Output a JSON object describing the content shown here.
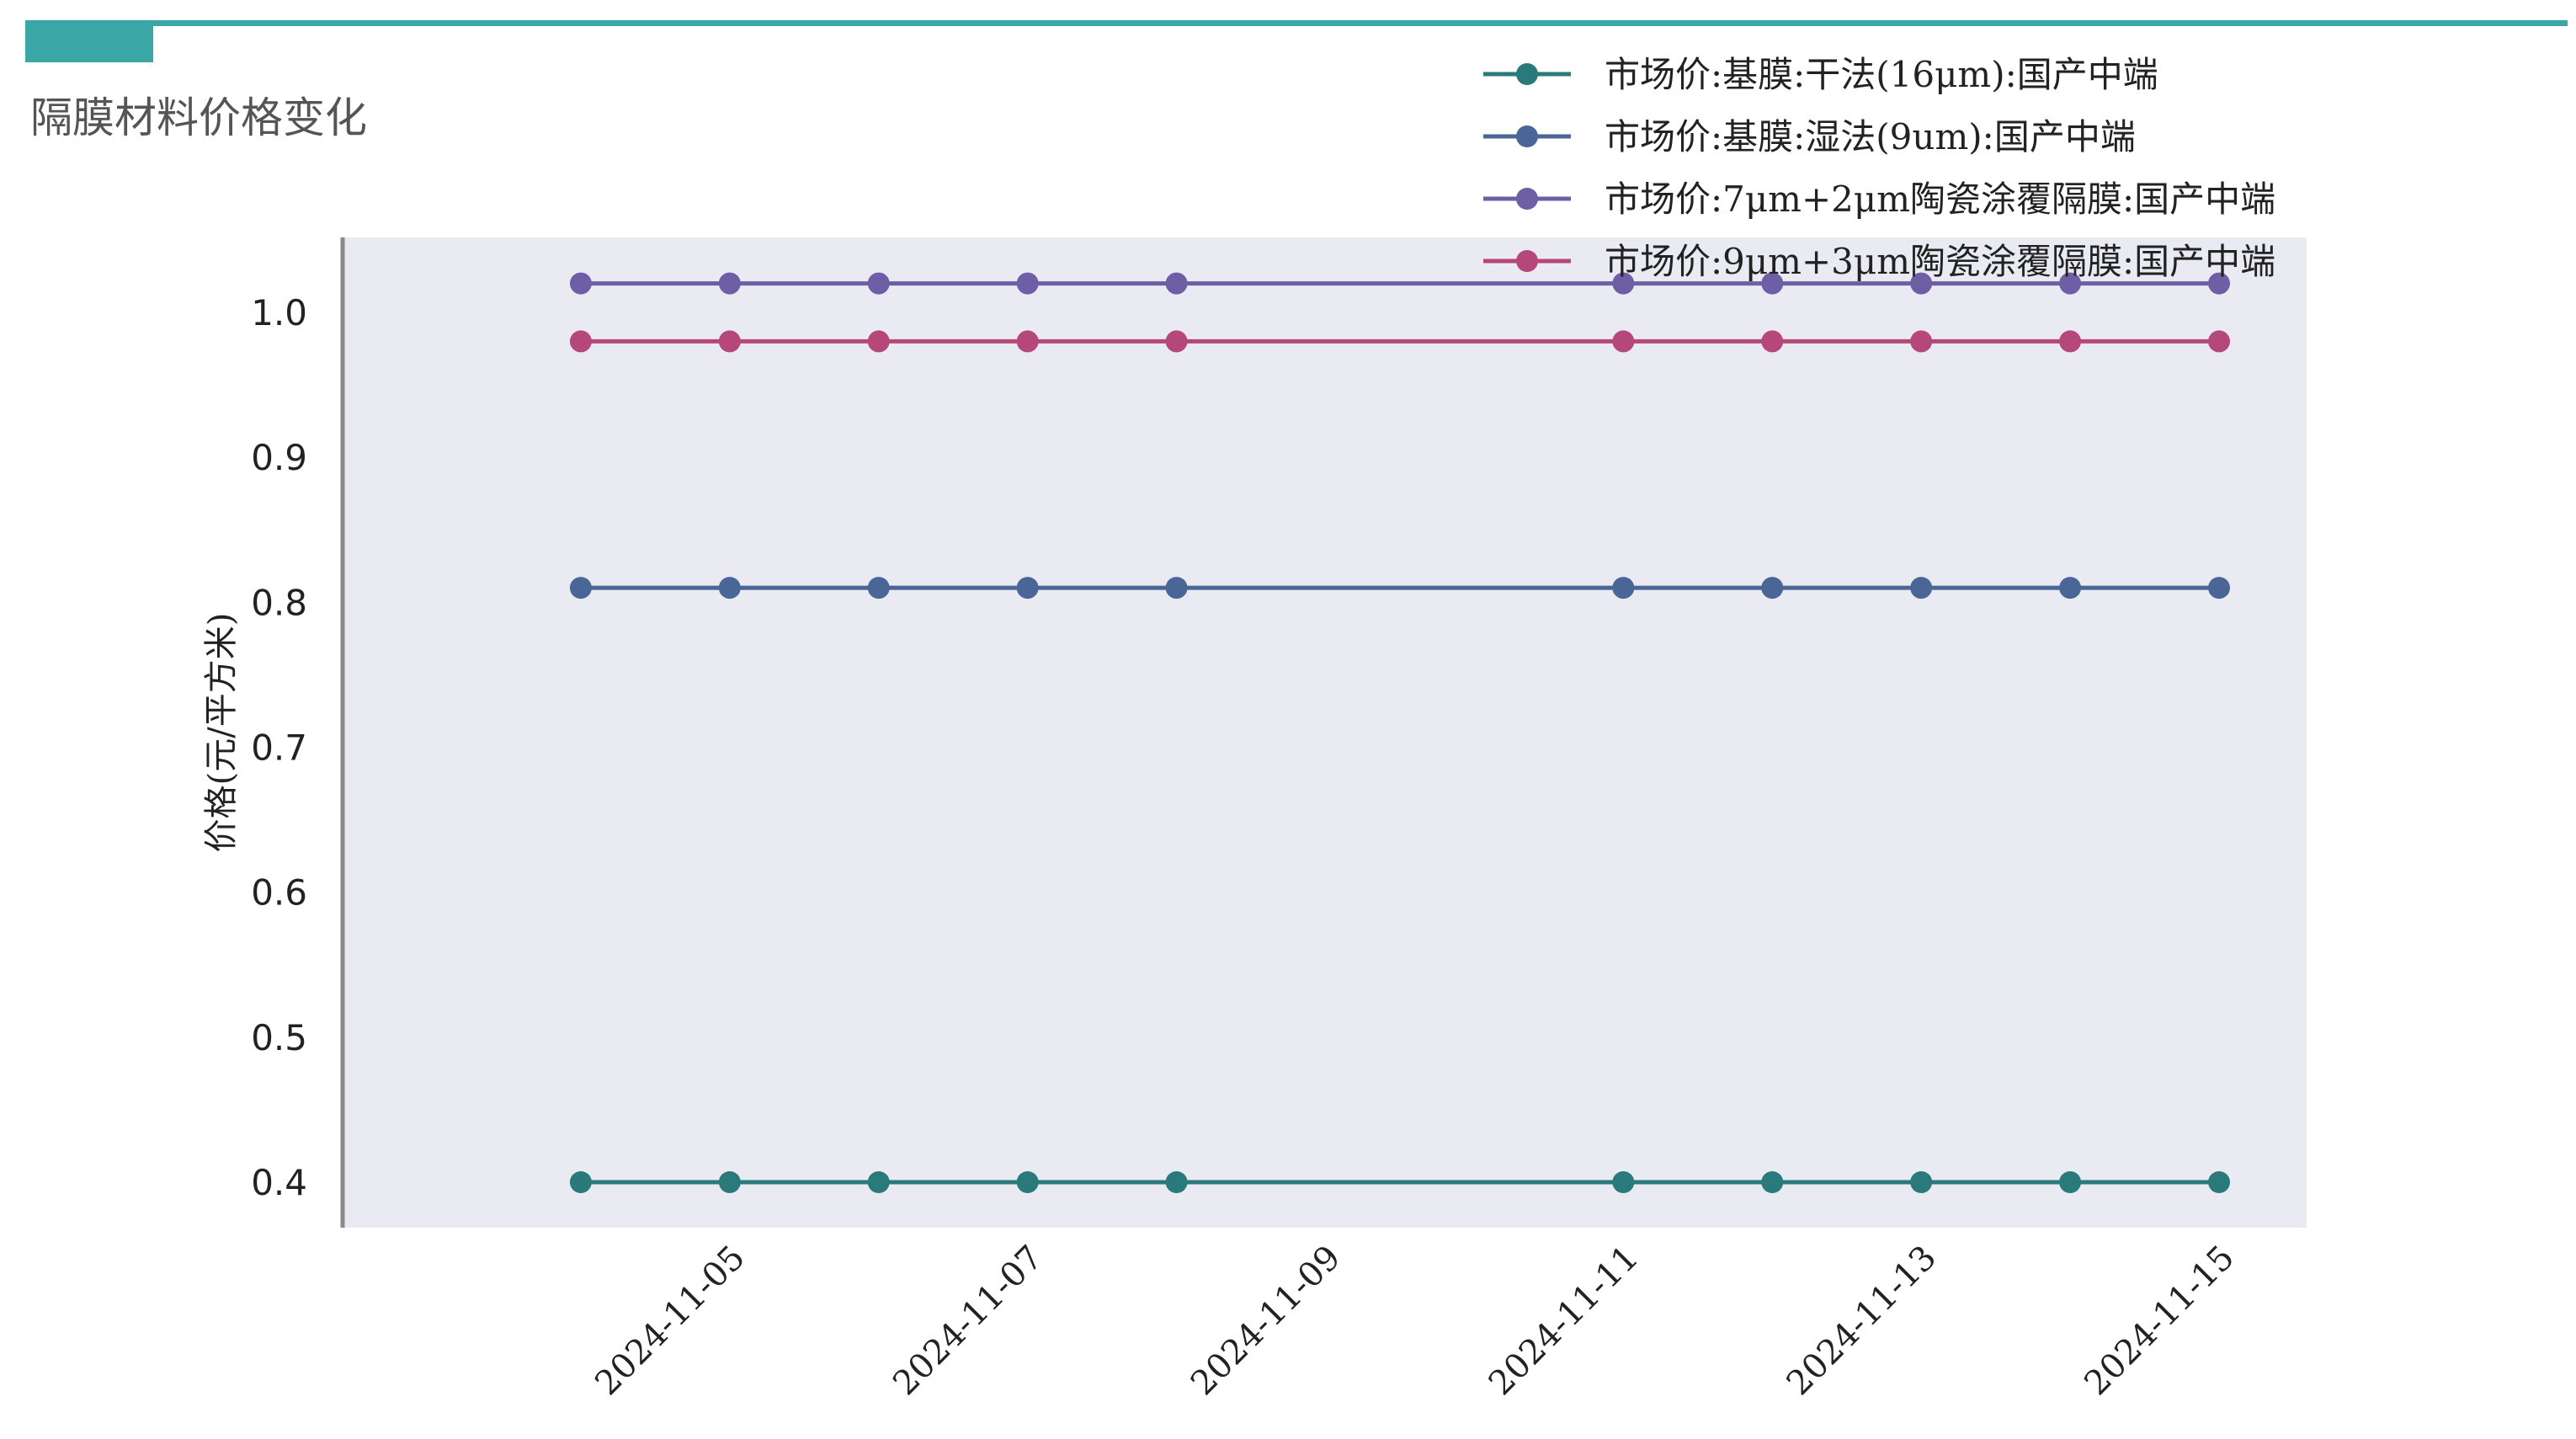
{
  "page": {
    "title": "隔膜材料价格变化",
    "accent_color": "#3aa6a6"
  },
  "chart_data": {
    "type": "line",
    "title": "隔膜材料价格变化",
    "xlabel": "",
    "ylabel": "价格(元/平方米)",
    "x": [
      "2024-11-04",
      "2024-11-05",
      "2024-11-06",
      "2024-11-07",
      "2024-11-08",
      "2024-11-11",
      "2024-11-12",
      "2024-11-13",
      "2024-11-14",
      "2024-11-15"
    ],
    "xticks": [
      "2024-11-05",
      "2024-11-07",
      "2024-11-09",
      "2024-11-11",
      "2024-11-13",
      "2024-11-15"
    ],
    "xlim": [
      "2024-11-03",
      "2024-11-15"
    ],
    "yticks": [
      "0.4",
      "0.5",
      "0.6",
      "0.7",
      "0.8",
      "0.9",
      "1.0"
    ],
    "ylim": [
      0.37,
      1.05
    ],
    "grid": false,
    "background": "#eaeaf2",
    "legend_position": "top-right",
    "series": [
      {
        "name": "市场价:基膜:干法(16μm):国产中端",
        "color": "#2a7a7c",
        "values": [
          0.4,
          0.4,
          0.4,
          0.4,
          0.4,
          0.4,
          0.4,
          0.4,
          0.4,
          0.4
        ]
      },
      {
        "name": "市场价:基膜:湿法(9um):国产中端",
        "color": "#4a6696",
        "values": [
          0.81,
          0.81,
          0.81,
          0.81,
          0.81,
          0.81,
          0.81,
          0.81,
          0.81,
          0.81
        ]
      },
      {
        "name": "市场价:7μm+2μm陶瓷涂覆隔膜:国产中端",
        "color": "#6d5ea6",
        "values": [
          1.02,
          1.02,
          1.02,
          1.02,
          1.02,
          1.02,
          1.02,
          1.02,
          1.02,
          1.02
        ]
      },
      {
        "name": "市场价:9μm+3μm陶瓷涂覆隔膜:国产中端",
        "color": "#b5477a",
        "values": [
          0.98,
          0.98,
          0.98,
          0.98,
          0.98,
          0.98,
          0.98,
          0.98,
          0.98,
          0.98
        ]
      }
    ]
  }
}
